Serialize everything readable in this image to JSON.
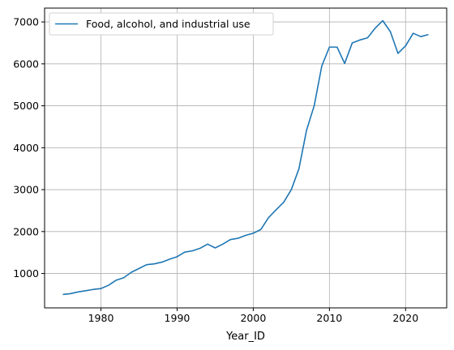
{
  "chart_data": {
    "type": "line",
    "title": "",
    "xlabel": "Year_ID",
    "ylabel": "",
    "xlim": [
      1972.6,
      2025.4
    ],
    "ylim": [
      180,
      7330
    ],
    "xticks": [
      1980,
      1990,
      2000,
      2010,
      2020
    ],
    "yticks": [
      1000,
      2000,
      3000,
      4000,
      5000,
      6000,
      7000
    ],
    "grid": true,
    "legend_position": "top-left",
    "series": [
      {
        "name": "Food, alcohol, and industrial use",
        "color": "#1f77b4",
        "x": [
          1975,
          1976,
          1977,
          1978,
          1979,
          1980,
          1981,
          1982,
          1983,
          1984,
          1985,
          1986,
          1987,
          1988,
          1989,
          1990,
          1991,
          1992,
          1993,
          1994,
          1995,
          1996,
          1997,
          1998,
          1999,
          2000,
          2001,
          2002,
          2003,
          2004,
          2005,
          2006,
          2007,
          2008,
          2009,
          2010,
          2011,
          2012,
          2013,
          2014,
          2015,
          2016,
          2017,
          2018,
          2019,
          2020,
          2021,
          2022,
          2023
        ],
        "values": [
          500,
          520,
          560,
          590,
          620,
          640,
          720,
          840,
          900,
          1030,
          1120,
          1210,
          1230,
          1270,
          1340,
          1400,
          1510,
          1540,
          1600,
          1700,
          1610,
          1700,
          1810,
          1840,
          1910,
          1960,
          2050,
          2330,
          2520,
          2700,
          3000,
          3500,
          4420,
          5000,
          5950,
          6400,
          6400,
          6010,
          6500,
          6570,
          6620,
          6850,
          7030,
          6770,
          6250,
          6430,
          6730,
          6650,
          6700
        ]
      }
    ]
  }
}
